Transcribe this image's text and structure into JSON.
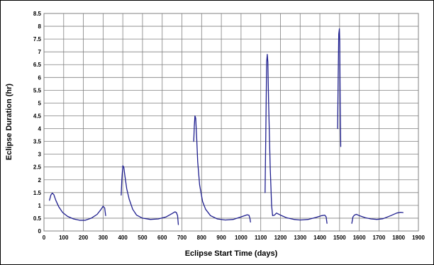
{
  "chart_data": {
    "type": "line",
    "title": "",
    "xlabel": "Eclipse Start Time (days)",
    "ylabel": "Eclipse Duration (hr)",
    "xlim": [
      0,
      1900
    ],
    "ylim": [
      0,
      8.5
    ],
    "xticks": [
      0,
      100,
      200,
      300,
      400,
      500,
      600,
      700,
      800,
      900,
      1000,
      1100,
      1200,
      1300,
      1400,
      1500,
      1600,
      1700,
      1800,
      1900
    ],
    "yticks": [
      0,
      0.5,
      1,
      1.5,
      2,
      2.5,
      3,
      3.5,
      4,
      4.5,
      5,
      5.5,
      6,
      6.5,
      7,
      7.5,
      8,
      8.5
    ],
    "grid": true,
    "legend": "none",
    "colors": {
      "series": "#1f1f8f",
      "grid": "#808080",
      "axis": "#000000"
    },
    "series": [
      {
        "segments": [
          [
            [
              28,
              1.2
            ],
            [
              35,
              1.4
            ],
            [
              42,
              1.48
            ],
            [
              50,
              1.42
            ],
            [
              60,
              1.2
            ],
            [
              75,
              0.95
            ],
            [
              95,
              0.72
            ],
            [
              120,
              0.57
            ],
            [
              150,
              0.47
            ],
            [
              180,
              0.42
            ],
            [
              210,
              0.42
            ],
            [
              240,
              0.5
            ],
            [
              270,
              0.65
            ],
            [
              290,
              0.85
            ],
            [
              300,
              0.97
            ],
            [
              308,
              0.9
            ],
            [
              313,
              0.6
            ]
          ],
          [
            [
              392,
              1.4
            ],
            [
              395,
              2.0
            ],
            [
              400,
              2.55
            ],
            [
              405,
              2.5
            ],
            [
              410,
              2.2
            ],
            [
              420,
              1.65
            ],
            [
              432,
              1.25
            ],
            [
              450,
              0.85
            ],
            [
              470,
              0.62
            ],
            [
              500,
              0.5
            ],
            [
              540,
              0.45
            ],
            [
              580,
              0.47
            ],
            [
              620,
              0.55
            ],
            [
              650,
              0.68
            ],
            [
              665,
              0.75
            ],
            [
              672,
              0.72
            ],
            [
              678,
              0.6
            ],
            [
              682,
              0.25
            ]
          ],
          [
            [
              760,
              3.5
            ],
            [
              763,
              4.1
            ],
            [
              766,
              4.5
            ],
            [
              770,
              4.4
            ],
            [
              775,
              3.6
            ],
            [
              780,
              2.7
            ],
            [
              790,
              1.8
            ],
            [
              805,
              1.15
            ],
            [
              820,
              0.85
            ],
            [
              845,
              0.6
            ],
            [
              880,
              0.47
            ],
            [
              920,
              0.43
            ],
            [
              960,
              0.45
            ],
            [
              1000,
              0.55
            ],
            [
              1030,
              0.63
            ],
            [
              1040,
              0.62
            ],
            [
              1045,
              0.5
            ],
            [
              1048,
              0.35
            ]
          ],
          [
            [
              1122,
              1.5
            ],
            [
              1126,
              4.0
            ],
            [
              1130,
              6.6
            ],
            [
              1133,
              6.9
            ],
            [
              1136,
              6.6
            ],
            [
              1140,
              5.0
            ],
            [
              1148,
              2.5
            ],
            [
              1155,
              1.0
            ],
            [
              1160,
              0.6
            ],
            [
              1170,
              0.62
            ],
            [
              1180,
              0.7
            ],
            [
              1200,
              0.62
            ],
            [
              1230,
              0.52
            ],
            [
              1270,
              0.45
            ],
            [
              1300,
              0.43
            ],
            [
              1340,
              0.45
            ],
            [
              1380,
              0.53
            ],
            [
              1410,
              0.6
            ],
            [
              1425,
              0.62
            ],
            [
              1432,
              0.55
            ],
            [
              1436,
              0.3
            ]
          ],
          [
            [
              1490,
              4.0
            ],
            [
              1493,
              6.0
            ],
            [
              1496,
              7.7
            ],
            [
              1499,
              7.9
            ],
            [
              1501,
              7.4
            ],
            [
              1503,
              5.0
            ],
            [
              1506,
              3.3
            ]
          ],
          [
            [
              1562,
              0.3
            ],
            [
              1568,
              0.55
            ],
            [
              1575,
              0.62
            ],
            [
              1585,
              0.65
            ],
            [
              1600,
              0.6
            ],
            [
              1630,
              0.52
            ],
            [
              1660,
              0.47
            ],
            [
              1690,
              0.45
            ],
            [
              1720,
              0.48
            ],
            [
              1760,
              0.6
            ],
            [
              1790,
              0.7
            ],
            [
              1810,
              0.73
            ],
            [
              1822,
              0.72
            ]
          ]
        ]
      }
    ]
  }
}
